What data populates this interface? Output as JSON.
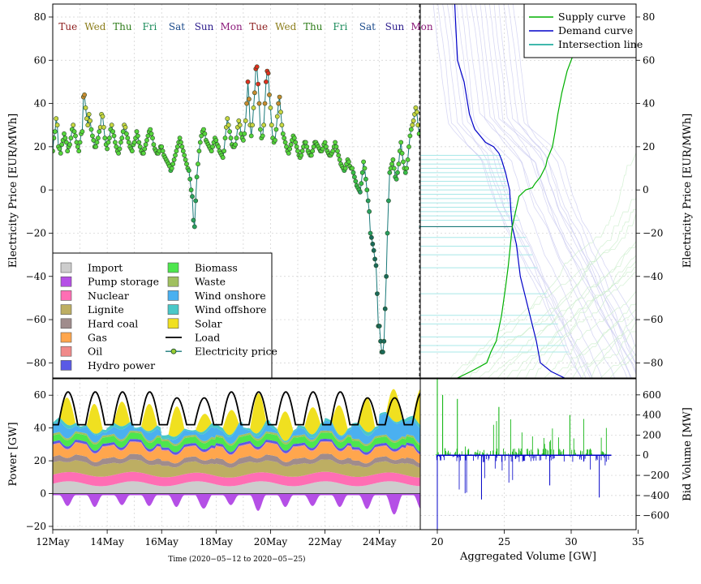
{
  "chart_data": [
    {
      "panel": "price-time",
      "type": "line",
      "ylabel": "Electricity Price [EUR/MWh]",
      "ylim": [
        -87,
        86
      ],
      "yticks": [
        -80,
        -60,
        -40,
        -20,
        0,
        20,
        40,
        60,
        80
      ],
      "day_labels": [
        {
          "label": "Tue",
          "color": "#8b1a1a"
        },
        {
          "label": "Wed",
          "color": "#8b7d1a"
        },
        {
          "label": "Thu",
          "color": "#2e7d1a"
        },
        {
          "label": "Fri",
          "color": "#1a8b5a"
        },
        {
          "label": "Sat",
          "color": "#1a4a8b"
        },
        {
          "label": "Sun",
          "color": "#2a1a8b"
        },
        {
          "label": "Mon",
          "color": "#8b1a7a"
        },
        {
          "label": "Tue",
          "color": "#8b1a1a"
        },
        {
          "label": "Wed",
          "color": "#8b7d1a"
        },
        {
          "label": "Thu",
          "color": "#2e7d1a"
        },
        {
          "label": "Fri",
          "color": "#1a8b5a"
        },
        {
          "label": "Sat",
          "color": "#1a4a8b"
        },
        {
          "label": "Sun",
          "color": "#2a1a8b"
        },
        {
          "label": "Mon",
          "color": "#8b1a7a"
        }
      ],
      "series": [
        {
          "name": "Electricity price",
          "daily_prices": [
            [
              18,
              24,
              27,
              33,
              30,
              20,
              19,
              17,
              21,
              23,
              26,
              24,
              22,
              18,
              20,
              21,
              24,
              28,
              30,
              27,
              25,
              22,
              20,
              18
            ],
            [
              22,
              26,
              27,
              43,
              44,
              38,
              33,
              30,
              35,
              32,
              28,
              25,
              23,
              20,
              20,
              22,
              24,
              27,
              29,
              35,
              34,
              29,
              24,
              21
            ],
            [
              19,
              22,
              24,
              28,
              30,
              27,
              25,
              22,
              20,
              18,
              17,
              19,
              22,
              24,
              27,
              30,
              29,
              26,
              24,
              22,
              20,
              19,
              18,
              21
            ],
            [
              22,
              24,
              27,
              25,
              22,
              20,
              18,
              17,
              17,
              19,
              21,
              23,
              25,
              27,
              28,
              26,
              24,
              21,
              19,
              18,
              17,
              17,
              18,
              20
            ],
            [
              20,
              18,
              16,
              15,
              14,
              13,
              12,
              11,
              9,
              10,
              12,
              14,
              16,
              18,
              20,
              22,
              24,
              22,
              20,
              18,
              16,
              14,
              12,
              10
            ],
            [
              9,
              5,
              0,
              -3,
              -14,
              -17,
              -5,
              6,
              12,
              18,
              22,
              25,
              27,
              28,
              26,
              23,
              22,
              21,
              20,
              19,
              18,
              20,
              22,
              24
            ],
            [
              23,
              21,
              20,
              18,
              17,
              16,
              15,
              18,
              24,
              29,
              33,
              30,
              27,
              24,
              21,
              20,
              20,
              21,
              24,
              29,
              32,
              30,
              26,
              24
            ],
            [
              23,
              26,
              32,
              40,
              50,
              42,
              30,
              25,
              30,
              38,
              45,
              56,
              57,
              49,
              40,
              28,
              24,
              25,
              30,
              40,
              50,
              55,
              54,
              44
            ],
            [
              38,
              30,
              24,
              22,
              23,
              28,
              34,
              40,
              43,
              36,
              30,
              26,
              24,
              22,
              20,
              18,
              17,
              19,
              21,
              23,
              25,
              24,
              22,
              20
            ],
            [
              18,
              16,
              15,
              16,
              18,
              20,
              22,
              22,
              20,
              18,
              17,
              16,
              16,
              18,
              20,
              22,
              22,
              21,
              20,
              19,
              18,
              18,
              19,
              21
            ],
            [
              22,
              20,
              18,
              17,
              16,
              16,
              17,
              18,
              20,
              22,
              20,
              18,
              16,
              14,
              12,
              11,
              10,
              9,
              10,
              12,
              14,
              13,
              11,
              10
            ],
            [
              10,
              8,
              6,
              4,
              2,
              1,
              0,
              -1,
              3,
              8,
              13,
              10,
              5,
              0,
              -5,
              -10,
              -20,
              -22,
              -25,
              -28,
              -32,
              -35,
              -48,
              -63
            ],
            [
              -63,
              -70,
              -75,
              -75,
              -70,
              -55,
              -40,
              -20,
              -5,
              8,
              10,
              12,
              14,
              10,
              6,
              5,
              8,
              12,
              18,
              22,
              17,
              13,
              10,
              8
            ],
            [
              10,
              14,
              20,
              25,
              28,
              30,
              32,
              35,
              38,
              36,
              30,
              26
            ]
          ]
        },
        {
          "name": "Load",
          "values": []
        }
      ]
    },
    {
      "panel": "order-curves",
      "type": "line",
      "ylabel": "Electricity Price [EUR/MWh]",
      "ylim": [
        -87,
        86
      ],
      "yticks": [
        -80,
        -60,
        -40,
        -20,
        0,
        20,
        40,
        60,
        80
      ],
      "legend": [
        "Supply curve",
        "Demand curve",
        "Intersection line"
      ],
      "legend_colors": [
        "#00b000",
        "#0000c8",
        "#00a090"
      ],
      "legend_position": "top-right",
      "clearing_price": -17,
      "clearing_volume": 25.6
    },
    {
      "panel": "generation-mix",
      "type": "area",
      "ylabel": "Power [GW]",
      "xlabel": "Time (2020−05−12 to 2020−05−25)",
      "ylim": [
        -22,
        70
      ],
      "yticks": [
        -20,
        0,
        20,
        40,
        60
      ],
      "x_tick_labels": [
        "12May",
        "14May",
        "16May",
        "18May",
        "20May",
        "22May",
        "24May"
      ],
      "legend_position": "lower-left",
      "legend": [
        {
          "name": "Import",
          "color": "#cdcdcd"
        },
        {
          "name": "Pump storage",
          "color": "#b54fe6"
        },
        {
          "name": "Nuclear",
          "color": "#ff6eb4"
        },
        {
          "name": "Lignite",
          "color": "#bdae63"
        },
        {
          "name": "Hard coal",
          "color": "#a08c8c"
        },
        {
          "name": "Gas",
          "color": "#ffa64d"
        },
        {
          "name": "Oil",
          "color": "#f08a8a"
        },
        {
          "name": "Hydro power",
          "color": "#5a5ae6"
        },
        {
          "name": "Biomass",
          "color": "#4de64d"
        },
        {
          "name": "Waste",
          "color": "#a0c060"
        },
        {
          "name": "Wind onshore",
          "color": "#4ab0f0"
        },
        {
          "name": "Wind offshore",
          "color": "#4ac8c8"
        },
        {
          "name": "Solar",
          "color": "#f0e020"
        },
        {
          "name": "Load",
          "color": "#000000"
        },
        {
          "name": "Electricity price",
          "color": "#1a7a7a"
        }
      ]
    },
    {
      "panel": "bid-volume",
      "type": "bar",
      "xlabel": "Aggregated Volume [GW]",
      "ylabel": "Bid Volume [MW]",
      "xlim": [
        19.2,
        35.5
      ],
      "ylim": [
        -740,
        760
      ],
      "x_ticks": [
        20,
        25,
        30,
        35
      ],
      "yticks": [
        -600,
        -400,
        -200,
        0,
        200,
        400,
        600
      ]
    }
  ]
}
